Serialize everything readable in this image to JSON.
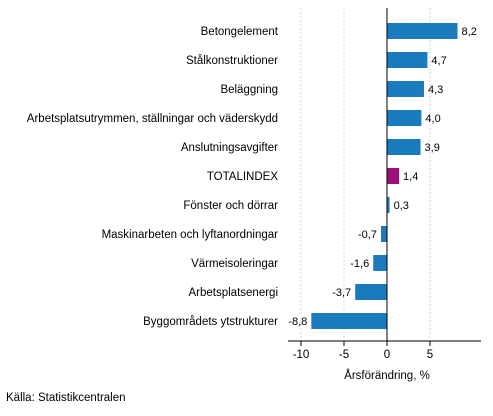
{
  "chart_data": {
    "type": "bar",
    "orientation": "horizontal",
    "categories": [
      "Betongelement",
      "Stålkonstruktioner",
      "Beläggning",
      "Arbetsplatsutrymmen, ställningar och väderskydd",
      "Anslutningsavgifter",
      "TOTALINDEX",
      "Fönster och dörrar",
      "Maskinarbeten och lyftanordningar",
      "Värmeisoleringar",
      "Arbetsplatsenergi",
      "Byggområdets ytstrukturer"
    ],
    "values": [
      8.2,
      4.7,
      4.3,
      4.0,
      3.9,
      1.4,
      0.3,
      -0.7,
      -1.6,
      -3.7,
      -8.8
    ],
    "value_labels": [
      "8,2",
      "4,7",
      "4,3",
      "4,0",
      "3,9",
      "1,4",
      "0,3",
      "-0,7",
      "-1,6",
      "-3,7",
      "-8,8"
    ],
    "highlight_category": "TOTALINDEX",
    "colors": {
      "bar": "#1b7bbf",
      "highlight": "#a0107a",
      "axis": "#000000",
      "grid": "#d9d9d9"
    },
    "xlim": [
      -11,
      11
    ],
    "xticks": [
      -10,
      -5,
      0,
      5
    ],
    "xtick_labels": [
      "-10",
      "-5",
      "0",
      "5"
    ],
    "xlabel": "Årsförändring, %",
    "grid": "vertical dashed",
    "legend": "none"
  },
  "source": "Källa: Statistikcentralen"
}
